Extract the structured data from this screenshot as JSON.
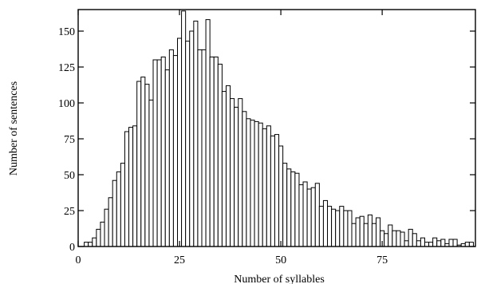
{
  "chart_data": {
    "type": "bar",
    "xlabel": "Number of syllables",
    "ylabel": "Number of sentences",
    "xlim": [
      0,
      98
    ],
    "ylim": [
      0,
      165
    ],
    "x_ticks": [
      0,
      25,
      50,
      75
    ],
    "y_ticks": [
      0,
      25,
      50,
      75,
      100,
      125,
      150
    ],
    "grid": false,
    "bar_color": "#ffffff",
    "edge_color": "#000000",
    "x": [
      2,
      3,
      4,
      5,
      6,
      7,
      8,
      9,
      10,
      11,
      12,
      13,
      14,
      15,
      16,
      17,
      18,
      19,
      20,
      21,
      22,
      23,
      24,
      25,
      26,
      27,
      28,
      29,
      30,
      31,
      32,
      33,
      34,
      35,
      36,
      37,
      38,
      39,
      40,
      41,
      42,
      43,
      44,
      45,
      46,
      47,
      48,
      49,
      50,
      51,
      52,
      53,
      54,
      55,
      56,
      57,
      58,
      59,
      60,
      61,
      62,
      63,
      64,
      65,
      66,
      67,
      68,
      69,
      70,
      71,
      72,
      73,
      74,
      75,
      76,
      77,
      78,
      79,
      80,
      81,
      82,
      83,
      84,
      85,
      86,
      87,
      88,
      89,
      90,
      91,
      92,
      93,
      94,
      95,
      96,
      97
    ],
    "values": [
      3,
      3,
      6,
      12,
      17,
      26,
      34,
      46,
      52,
      58,
      80,
      83,
      84,
      115,
      118,
      113,
      102,
      130,
      130,
      132,
      123,
      137,
      133,
      145,
      164,
      143,
      150,
      157,
      137,
      137,
      158,
      132,
      132,
      127,
      108,
      112,
      103,
      97,
      103,
      94,
      89,
      88,
      87,
      86,
      82,
      84,
      77,
      78,
      70,
      58,
      54,
      52,
      51,
      43,
      45,
      40,
      41,
      44,
      28,
      32,
      28,
      26,
      25,
      28,
      25,
      25,
      16,
      20,
      21,
      16,
      22,
      16,
      20,
      11,
      9,
      15,
      11,
      11,
      10,
      4,
      12,
      9,
      4,
      6,
      3,
      3,
      6,
      4,
      5,
      2,
      5,
      5,
      1,
      2,
      3,
      3
    ]
  }
}
